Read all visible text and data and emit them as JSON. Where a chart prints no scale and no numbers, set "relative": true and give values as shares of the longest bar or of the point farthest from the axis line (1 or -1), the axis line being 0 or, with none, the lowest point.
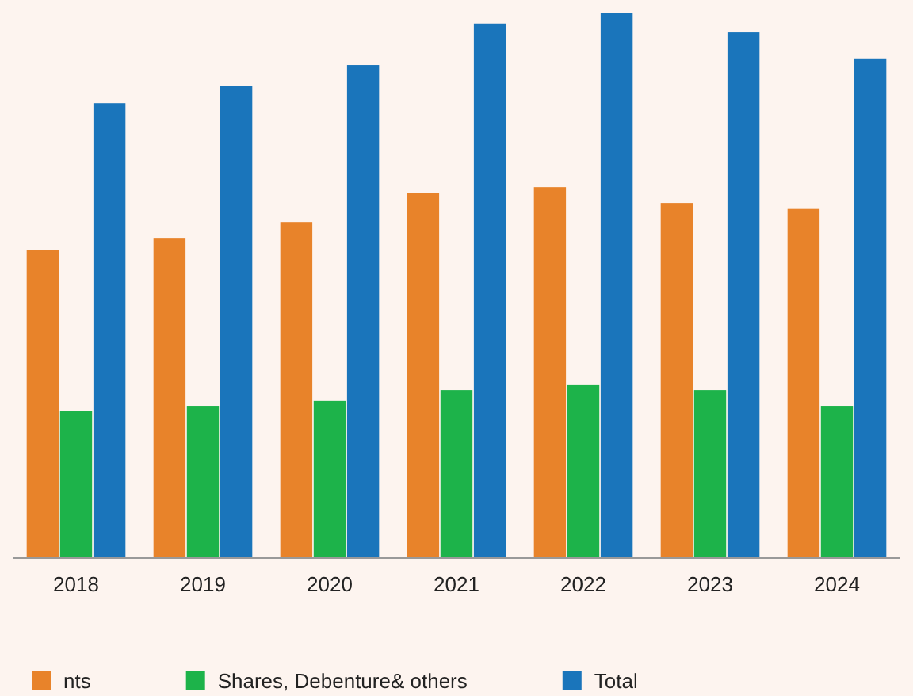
{
  "chart_data": {
    "type": "bar",
    "relative": true,
    "categories": [
      "2018",
      "2019",
      "2020",
      "2021",
      "2022",
      "2023",
      "2024"
    ],
    "series": [
      {
        "name": "nts",
        "color": "#e8832a",
        "values": [
          0.564,
          0.587,
          0.616,
          0.669,
          0.68,
          0.651,
          0.64
        ]
      },
      {
        "name": "Shares, Debenture& others",
        "color": "#1db34a",
        "values": [
          0.27,
          0.279,
          0.288,
          0.308,
          0.317,
          0.308,
          0.279
        ]
      },
      {
        "name": "Total",
        "color": "#1a75bb",
        "values": [
          0.834,
          0.866,
          0.904,
          0.98,
          1,
          0.965,
          0.916
        ]
      }
    ],
    "legend": "bottom"
  }
}
